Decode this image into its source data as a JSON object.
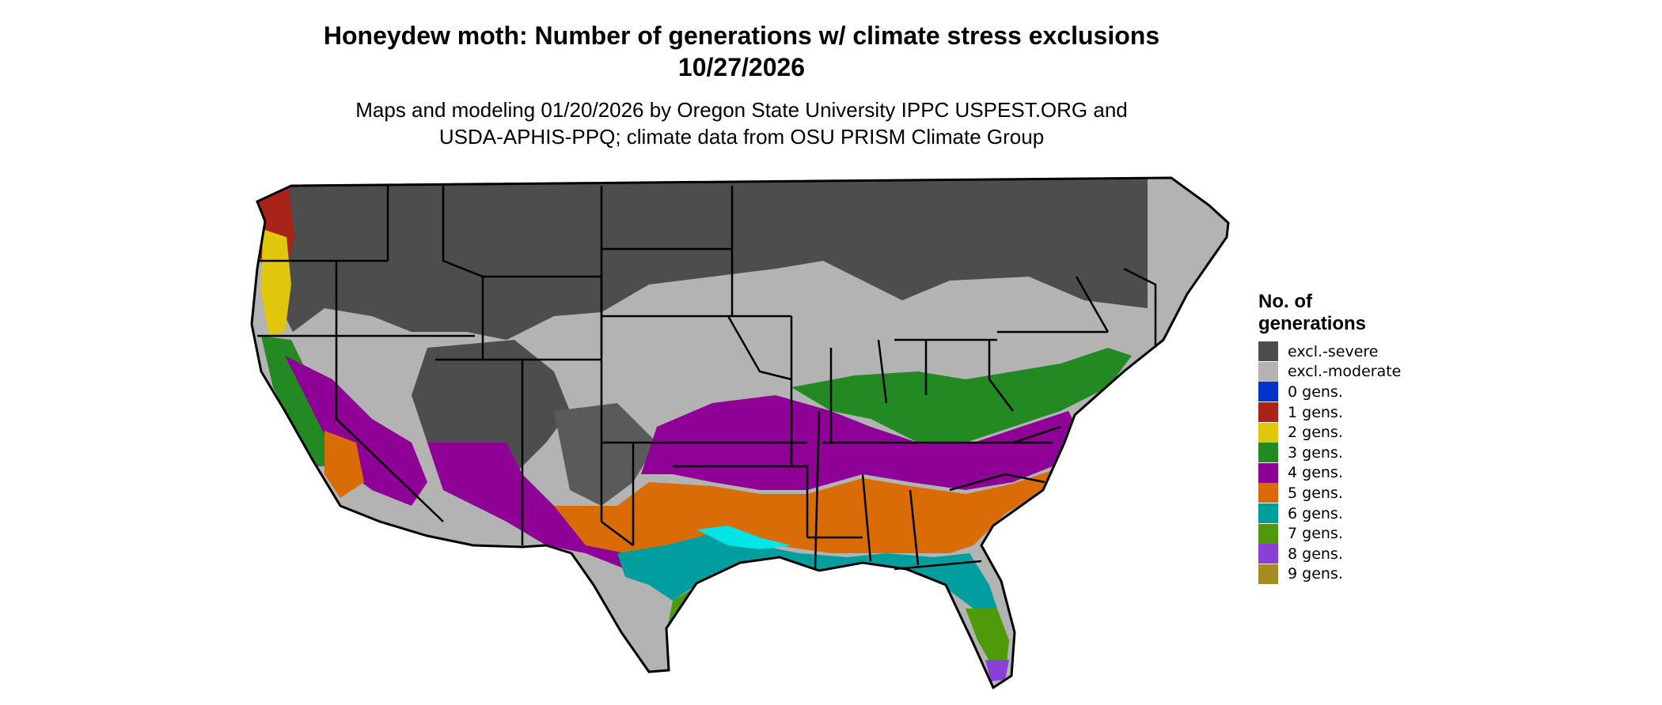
{
  "title": {
    "line1": "Honeydew moth: Number of generations w/ climate stress exclusions",
    "line2": "10/27/2026"
  },
  "subtitle": {
    "line1": "Maps and modeling 01/20/2026 by Oregon State University IPPC USPEST.ORG and",
    "line2": "USDA-APHIS-PPQ; climate data from OSU PRISM Climate Group"
  },
  "legend": {
    "title_line1": "No. of",
    "title_line2": "generations",
    "items": [
      {
        "label": "excl.-severe",
        "color": "#4d4d4d"
      },
      {
        "label": "excl.-moderate",
        "color": "#b3b3b3"
      },
      {
        "label": "0 gens.",
        "color": "#0033cc"
      },
      {
        "label": "1 gens.",
        "color": "#a82318"
      },
      {
        "label": "2 gens.",
        "color": "#e0c60c"
      },
      {
        "label": "3 gens.",
        "color": "#238a23"
      },
      {
        "label": "4 gens.",
        "color": "#8f0096"
      },
      {
        "label": "5 gens.",
        "color": "#d96c06"
      },
      {
        "label": "6 gens.",
        "color": "#009e9e"
      },
      {
        "label": "7 gens.",
        "color": "#4f9a0a"
      },
      {
        "label": "8 gens.",
        "color": "#8a40d6"
      },
      {
        "label": "9 gens.",
        "color": "#a68a23"
      }
    ]
  },
  "map": {
    "region": "Contiguous United States",
    "border_color": "#000000"
  }
}
